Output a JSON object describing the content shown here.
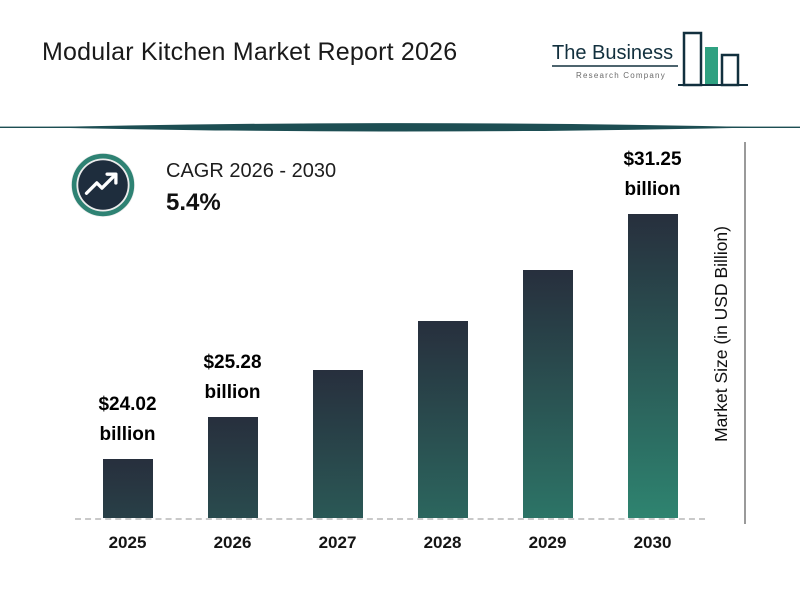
{
  "header": {
    "title": "Modular Kitchen Market Report 2026",
    "logo": {
      "line1": "The Business",
      "line2": "Research Company"
    }
  },
  "cagr": {
    "label": "CAGR 2026 - 2030",
    "value": "5.4%"
  },
  "chart_data": {
    "type": "bar",
    "title": "Modular Kitchen Market Report 2026",
    "categories": [
      "2025",
      "2026",
      "2027",
      "2028",
      "2029",
      "2030"
    ],
    "values": [
      24.02,
      25.28,
      26.65,
      28.09,
      29.6,
      31.25
    ],
    "labels": [
      {
        "amount": "$24.02",
        "unit": "billion"
      },
      {
        "amount": "$25.28",
        "unit": "billion"
      },
      null,
      null,
      null,
      {
        "amount": "$31.25",
        "unit": "billion"
      }
    ],
    "xlabel": "",
    "ylabel": "Market Size (in USD Billion)",
    "ylim": [
      22.3,
      32
    ],
    "grid": false,
    "legend": "none",
    "colors": {
      "bar_top": "#272f3d",
      "bar_bottom": "#2e8470",
      "accent_teal": "#2e8273",
      "divider": "#1d4e53",
      "logo_dark": "#12303e",
      "logo_green": "#2fa181"
    }
  }
}
